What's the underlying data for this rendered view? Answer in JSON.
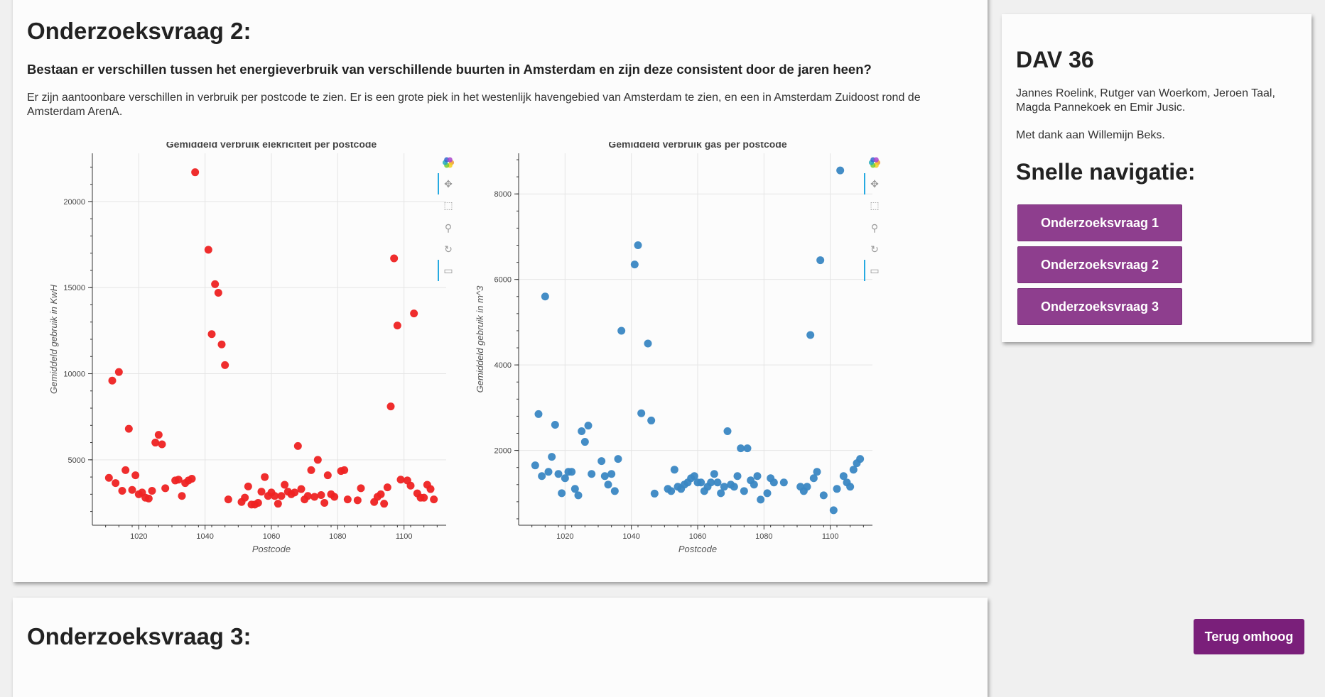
{
  "main": {
    "heading": "Onderzoeksvraag 2:",
    "question": "Bestaan er verschillen tussen het energieverbruik van verschillende buurten in Amsterdam en zijn deze consistent door de jaren heen?",
    "answer": "Er zijn aantoonbare verschillen in verbruik per postcode te zien. Er is een grote piek in het westenlijk havengebied van Amsterdam te zien, en een in Amsterdam Zuidoost rond de Amsterdam ArenA."
  },
  "next_section": {
    "heading": "Onderzoeksvraag 3:"
  },
  "sidebar": {
    "title": "DAV 36",
    "authors": "Jannes Roelink, Rutger van Woerkom, Jeroen Taal, Magda Pannekoek en Emir Jusic.",
    "thanks": "Met dank aan Willemijn Beks.",
    "nav_title": "Snelle navigatie:",
    "nav_buttons": [
      "Onderzoeksvraag 1",
      "Onderzoeksvraag 2",
      "Onderzoeksvraag 3"
    ]
  },
  "back_to_top": "Terug omhoog",
  "toolbar_icons": [
    "bokeh-logo-icon",
    "pan-icon",
    "box-zoom-icon",
    "wheel-zoom-icon",
    "reset-icon",
    "hover-icon"
  ],
  "chart_data": [
    {
      "type": "scatter",
      "title": "Gemiddeld verbruik elekriciteit per postcode",
      "xlabel": "Postcode",
      "ylabel": "Gemiddeld gebruik in KwH",
      "xlim": [
        1006,
        1114
      ],
      "ylim": [
        1200,
        22800
      ],
      "xticks": [
        1020,
        1040,
        1060,
        1080,
        1100
      ],
      "yticks": [
        5000,
        10000,
        15000,
        20000
      ],
      "grid": true,
      "color": "#ee2222",
      "x": [
        1011,
        1012,
        1013,
        1014,
        1015,
        1016,
        1017,
        1018,
        1019,
        1020,
        1021,
        1022,
        1023,
        1024,
        1025,
        1026,
        1027,
        1028,
        1031,
        1032,
        1033,
        1034,
        1035,
        1036,
        1037,
        1041,
        1042,
        1043,
        1044,
        1045,
        1046,
        1047,
        1051,
        1052,
        1053,
        1054,
        1055,
        1056,
        1057,
        1058,
        1059,
        1060,
        1061,
        1062,
        1063,
        1064,
        1065,
        1066,
        1067,
        1068,
        1069,
        1070,
        1071,
        1072,
        1073,
        1074,
        1075,
        1076,
        1077,
        1078,
        1079,
        1081,
        1082,
        1083,
        1086,
        1087,
        1091,
        1092,
        1093,
        1094,
        1095,
        1096,
        1097,
        1098,
        1099,
        1101,
        1102,
        1103,
        1104,
        1105,
        1106,
        1107,
        1108,
        1109
      ],
      "y": [
        3950,
        9600,
        3650,
        10100,
        3200,
        4400,
        6800,
        3250,
        4100,
        3000,
        3100,
        2800,
        2750,
        3200,
        6000,
        6450,
        5900,
        3350,
        3800,
        3850,
        2900,
        3650,
        3800,
        3900,
        21700,
        17200,
        12300,
        15200,
        14700,
        11700,
        10500,
        2700,
        2550,
        2800,
        3450,
        2400,
        2400,
        2500,
        3150,
        4000,
        2900,
        3100,
        2900,
        2450,
        2900,
        3550,
        3150,
        3000,
        3100,
        5800,
        3300,
        2700,
        2900,
        4400,
        2850,
        5000,
        2950,
        2500,
        4100,
        3000,
        2850,
        4350,
        4400,
        2700,
        2650,
        3350,
        2550,
        2850,
        3000,
        2450,
        3400,
        8100,
        16700,
        12800,
        3850,
        3800,
        3500,
        13500,
        3050,
        2800,
        2800,
        3550,
        3300,
        2700
      ]
    },
    {
      "type": "scatter",
      "title": "Gemiddeld verbruik gas per postcode",
      "xlabel": "Postcode",
      "ylabel": "Gemiddeld gebruik in m^3",
      "xlim": [
        1006,
        1114
      ],
      "ylim": [
        250,
        8950
      ],
      "xticks": [
        1020,
        1040,
        1060,
        1080,
        1100
      ],
      "yticks": [
        2000,
        4000,
        6000,
        8000
      ],
      "grid": true,
      "color": "#3a87c3",
      "x": [
        1011,
        1012,
        1013,
        1014,
        1015,
        1016,
        1017,
        1018,
        1019,
        1020,
        1021,
        1022,
        1023,
        1024,
        1025,
        1026,
        1027,
        1028,
        1031,
        1032,
        1033,
        1034,
        1035,
        1036,
        1037,
        1041,
        1042,
        1043,
        1045,
        1046,
        1047,
        1051,
        1052,
        1053,
        1054,
        1055,
        1056,
        1057,
        1058,
        1059,
        1060,
        1061,
        1062,
        1063,
        1064,
        1065,
        1066,
        1067,
        1068,
        1069,
        1070,
        1071,
        1072,
        1073,
        1074,
        1075,
        1076,
        1077,
        1078,
        1079,
        1081,
        1082,
        1083,
        1086,
        1091,
        1092,
        1093,
        1094,
        1095,
        1096,
        1097,
        1098,
        1101,
        1102,
        1103,
        1104,
        1105,
        1106,
        1107,
        1108,
        1109
      ],
      "y": [
        1650,
        2850,
        1400,
        5600,
        1500,
        1850,
        2600,
        1450,
        1000,
        1350,
        1500,
        1500,
        1100,
        950,
        2450,
        2200,
        2580,
        1450,
        1750,
        1400,
        1200,
        1450,
        1050,
        1800,
        4800,
        6350,
        6800,
        2870,
        4500,
        2700,
        990,
        1100,
        1050,
        1550,
        1150,
        1100,
        1200,
        1250,
        1350,
        1400,
        1250,
        1250,
        1050,
        1150,
        1250,
        1450,
        1250,
        1000,
        1150,
        2450,
        1200,
        1150,
        1400,
        2050,
        1050,
        2050,
        1300,
        1200,
        1400,
        850,
        1000,
        1350,
        1250,
        1250,
        1150,
        1050,
        1150,
        4700,
        1350,
        1500,
        6450,
        950,
        600,
        1100,
        8550,
        1400,
        1250,
        1150,
        1550,
        1700,
        1800
      ]
    }
  ]
}
